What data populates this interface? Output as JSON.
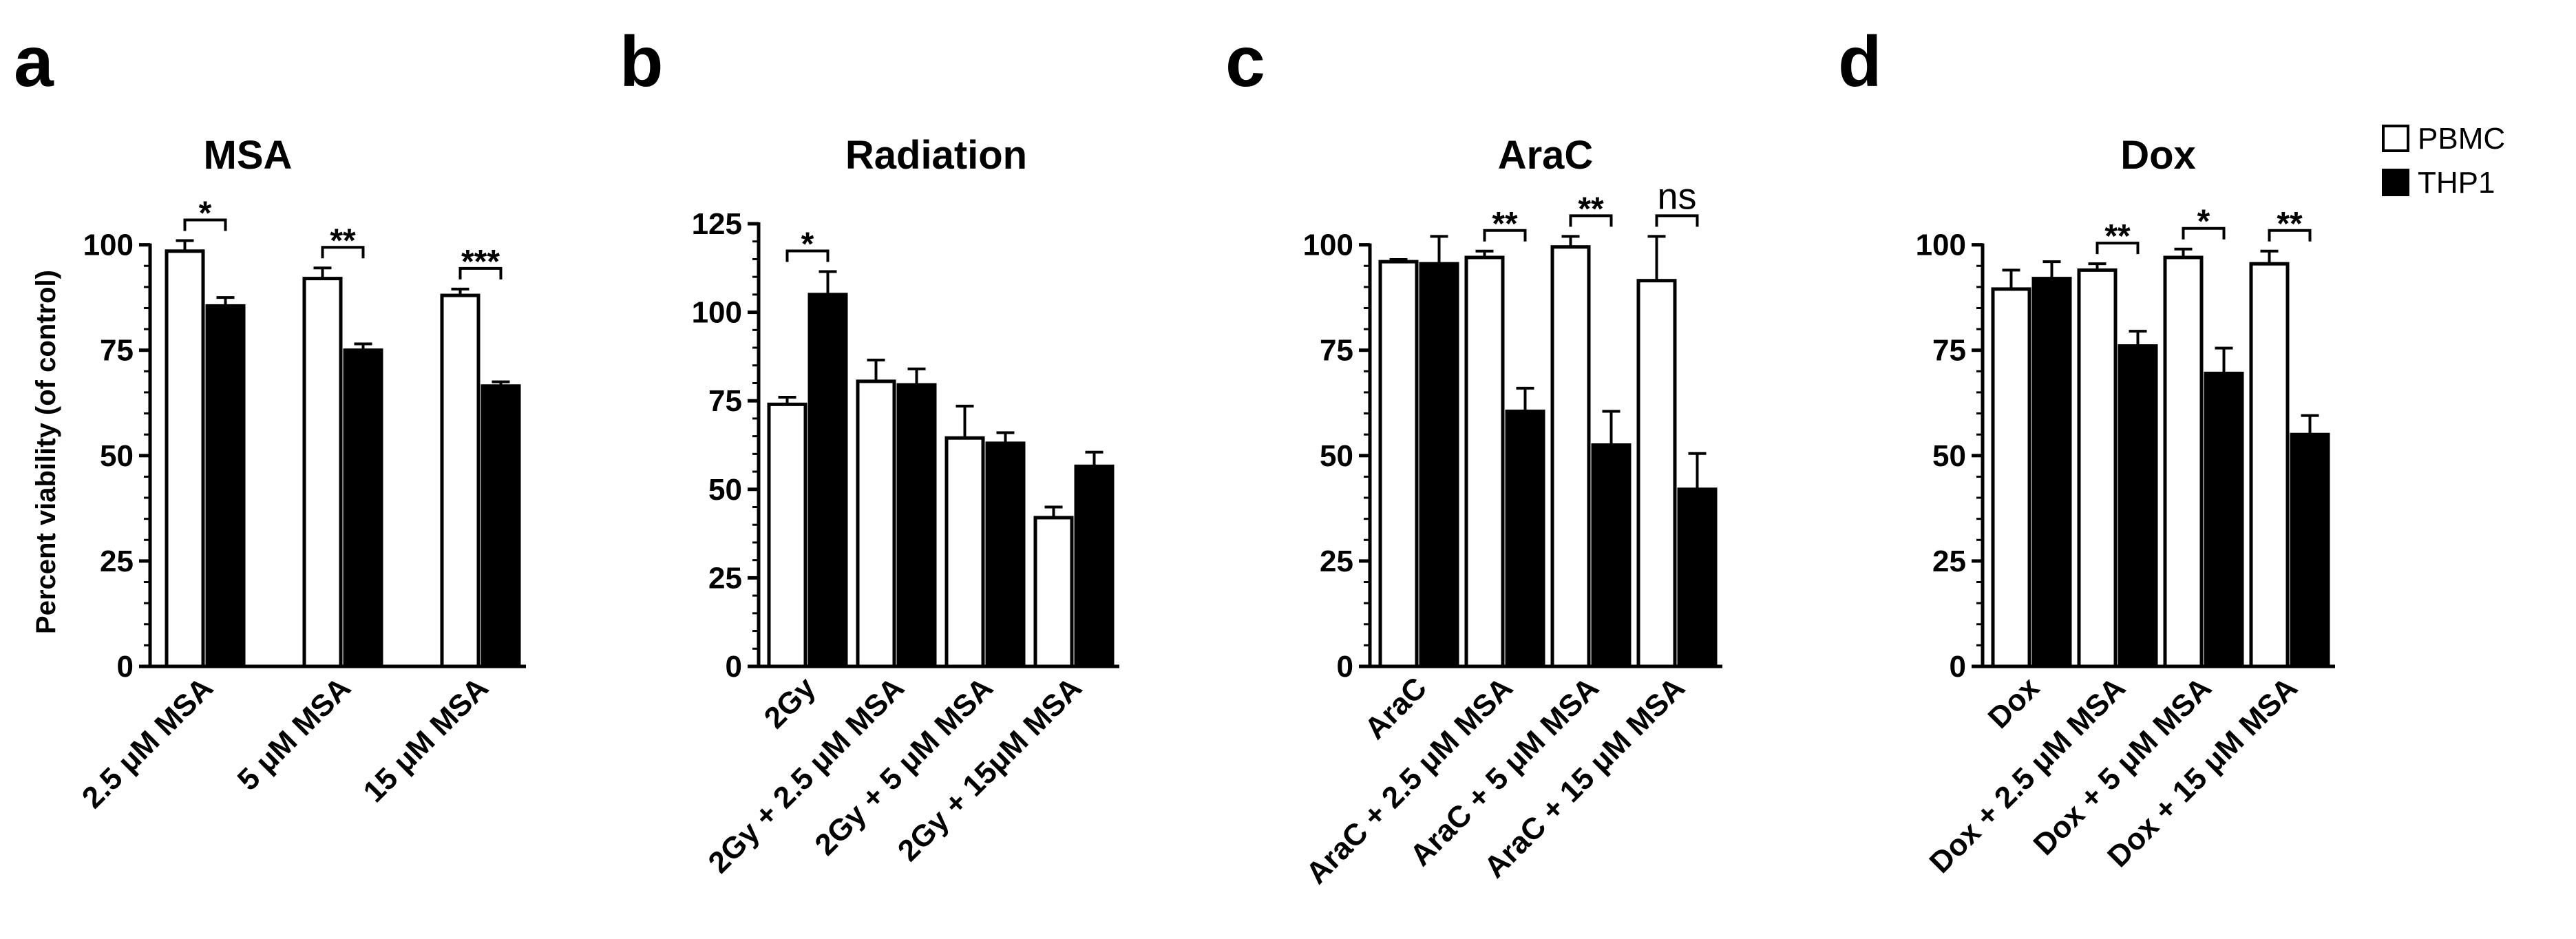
{
  "figure": {
    "legend": [
      {
        "label": "PBMC",
        "color": "#ffffff"
      },
      {
        "label": "THP1",
        "color": "#000000"
      }
    ]
  },
  "chart_data": [
    {
      "type": "bar",
      "panel": "a",
      "title": "MSA",
      "ylabel": "Percent viability (of control)",
      "xlabel": "",
      "ylim": [
        0,
        105
      ],
      "yticks": [
        0,
        25,
        50,
        75,
        100
      ],
      "categories": [
        "2.5 μM MSA",
        "5 μM MSA",
        "15 μM MSA"
      ],
      "series": [
        {
          "name": "PBMC",
          "values": [
            98.5,
            92.0,
            88.0
          ],
          "errors": [
            2.5,
            2.5,
            1.5
          ]
        },
        {
          "name": "THP1",
          "values": [
            85.5,
            75.0,
            66.5
          ],
          "errors": [
            2.0,
            1.5,
            1.0
          ]
        }
      ],
      "significance": [
        "*",
        "**",
        "***"
      ]
    },
    {
      "type": "bar",
      "panel": "b",
      "title": "Radiation",
      "ylabel": "",
      "xlabel": "",
      "ylim": [
        0,
        125
      ],
      "yticks": [
        0,
        25,
        50,
        75,
        100,
        125
      ],
      "categories": [
        "2Gy",
        "2Gy + 2.5 μM MSA",
        "2Gy + 5 μM MSA",
        "2Gy + 15μM MSA"
      ],
      "series": [
        {
          "name": "PBMC",
          "values": [
            74.0,
            80.5,
            64.5,
            42.0
          ],
          "errors": [
            2.0,
            6.0,
            9.0,
            3.0
          ]
        },
        {
          "name": "THP1",
          "values": [
            105.0,
            79.5,
            63.0,
            56.5
          ],
          "errors": [
            6.5,
            4.5,
            3.0,
            4.0
          ]
        }
      ],
      "significance": [
        "*",
        "",
        "",
        ""
      ]
    },
    {
      "type": "bar",
      "panel": "c",
      "title": "AraC",
      "ylabel": "",
      "xlabel": "",
      "ylim": [
        0,
        105
      ],
      "yticks": [
        0,
        25,
        50,
        75,
        100
      ],
      "categories": [
        "AraC",
        "AraC + 2.5 μM MSA",
        "AraC + 5 μM MSA",
        "AraC + 15 μM MSA"
      ],
      "series": [
        {
          "name": "PBMC",
          "values": [
            96.0,
            97.0,
            99.5,
            91.5
          ],
          "errors": [
            0.5,
            1.5,
            2.5,
            10.5
          ]
        },
        {
          "name": "THP1",
          "values": [
            95.5,
            60.5,
            52.5,
            42.0
          ],
          "errors": [
            6.5,
            5.5,
            8.0,
            8.5
          ]
        }
      ],
      "significance": [
        "",
        "**",
        "**",
        "ns"
      ]
    },
    {
      "type": "bar",
      "panel": "d",
      "title": "Dox",
      "ylabel": "",
      "xlabel": "",
      "ylim": [
        0,
        105
      ],
      "yticks": [
        0,
        25,
        50,
        75,
        100
      ],
      "categories": [
        "Dox",
        "Dox + 2.5 μM MSA",
        "Dox + 5 μM MSA",
        "Dox + 15 μM MSA"
      ],
      "series": [
        {
          "name": "PBMC",
          "values": [
            89.5,
            94.0,
            97.0,
            95.5
          ],
          "errors": [
            4.5,
            1.5,
            2.0,
            3.0
          ]
        },
        {
          "name": "THP1",
          "values": [
            92.0,
            76.0,
            69.5,
            55.0
          ],
          "errors": [
            4.0,
            3.5,
            6.0,
            4.5
          ]
        }
      ],
      "significance": [
        "",
        "**",
        "*",
        "**"
      ]
    }
  ]
}
